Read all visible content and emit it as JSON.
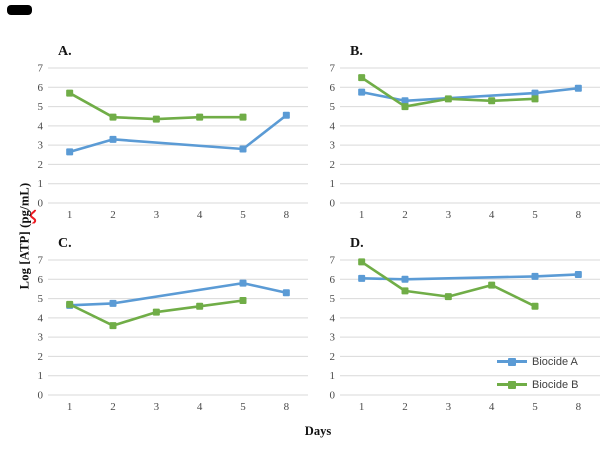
{
  "figure": {
    "x_axis_title": "Days",
    "y_axis_title": {
      "full": "Log [ATP] (pg/mL)",
      "prefix": "Log [ATP] (",
      "misspelled_word": "pg",
      "suffix": "/mL)"
    },
    "legend": {
      "position": "inside panel D, lower right",
      "items": [
        {
          "label": "Biocide A",
          "color": "#5B9BD5"
        },
        {
          "label": "Biocide B",
          "color": "#70AD47"
        }
      ]
    }
  },
  "colors": {
    "biocide_a": "#5B9BD5",
    "biocide_b": "#70AD47",
    "gridline": "#D9D9D9",
    "tick_text": "#4a4a4a",
    "spellcheck_squiggle": "#ec1c24",
    "redaction_bar": "#000000"
  },
  "chart_data": [
    {
      "panel": "A.",
      "type": "line",
      "x_categories": [
        "1",
        "2",
        "3",
        "4",
        "5",
        "8"
      ],
      "xlabel": "Days",
      "ylabel": "Log [ATP] (pg/mL)",
      "ylim": [
        0,
        7
      ],
      "yticks": [
        0,
        1,
        2,
        3,
        4,
        5,
        6,
        7
      ],
      "grid": true,
      "series": [
        {
          "name": "Biocide A",
          "color": "#5B9BD5",
          "points": [
            [
              "1",
              2.65
            ],
            [
              "2",
              3.3
            ],
            [
              "5",
              2.8
            ],
            [
              "8",
              4.55
            ]
          ]
        },
        {
          "name": "Biocide B",
          "color": "#70AD47",
          "points": [
            [
              "1",
              5.7
            ],
            [
              "2",
              4.45
            ],
            [
              "3",
              4.35
            ],
            [
              "4",
              4.45
            ],
            [
              "5",
              4.45
            ]
          ]
        }
      ]
    },
    {
      "panel": "B.",
      "type": "line",
      "x_categories": [
        "1",
        "2",
        "3",
        "4",
        "5",
        "8"
      ],
      "xlabel": "Days",
      "ylabel": "Log [ATP] (pg/mL)",
      "ylim": [
        0,
        7
      ],
      "yticks": [
        0,
        1,
        2,
        3,
        4,
        5,
        6,
        7
      ],
      "grid": true,
      "series": [
        {
          "name": "Biocide A",
          "color": "#5B9BD5",
          "points": [
            [
              "1",
              5.75
            ],
            [
              "2",
              5.3
            ],
            [
              "5",
              5.7
            ],
            [
              "8",
              5.95
            ]
          ]
        },
        {
          "name": "Biocide B",
          "color": "#70AD47",
          "points": [
            [
              "1",
              6.5
            ],
            [
              "2",
              5.0
            ],
            [
              "3",
              5.4
            ],
            [
              "4",
              5.3
            ],
            [
              "5",
              5.4
            ]
          ]
        }
      ]
    },
    {
      "panel": "C.",
      "type": "line",
      "x_categories": [
        "1",
        "2",
        "3",
        "4",
        "5",
        "8"
      ],
      "xlabel": "Days",
      "ylabel": "Log [ATP] (pg/mL)",
      "ylim": [
        0,
        7
      ],
      "yticks": [
        0,
        1,
        2,
        3,
        4,
        5,
        6,
        7
      ],
      "grid": true,
      "series": [
        {
          "name": "Biocide A",
          "color": "#5B9BD5",
          "points": [
            [
              "1",
              4.65
            ],
            [
              "2",
              4.75
            ],
            [
              "5",
              5.8
            ],
            [
              "8",
              5.3
            ]
          ]
        },
        {
          "name": "Biocide B",
          "color": "#70AD47",
          "points": [
            [
              "1",
              4.7
            ],
            [
              "2",
              3.6
            ],
            [
              "3",
              4.3
            ],
            [
              "4",
              4.6
            ],
            [
              "5",
              4.9
            ]
          ]
        }
      ]
    },
    {
      "panel": "D.",
      "type": "line",
      "x_categories": [
        "1",
        "2",
        "3",
        "4",
        "5",
        "8"
      ],
      "xlabel": "Days",
      "ylabel": "Log [ATP] (pg/mL)",
      "ylim": [
        0,
        7
      ],
      "yticks": [
        0,
        1,
        2,
        3,
        4,
        5,
        6,
        7
      ],
      "grid": true,
      "series": [
        {
          "name": "Biocide A",
          "color": "#5B9BD5",
          "points": [
            [
              "1",
              6.05
            ],
            [
              "2",
              6.0
            ],
            [
              "5",
              6.15
            ],
            [
              "8",
              6.25
            ]
          ]
        },
        {
          "name": "Biocide B",
          "color": "#70AD47",
          "points": [
            [
              "1",
              6.9
            ],
            [
              "2",
              5.4
            ],
            [
              "3",
              5.1
            ],
            [
              "4",
              5.7
            ],
            [
              "5",
              4.6
            ]
          ]
        }
      ]
    }
  ]
}
